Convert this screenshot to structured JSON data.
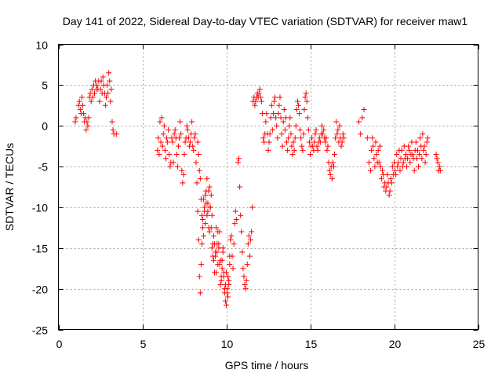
{
  "chart_data": {
    "type": "scatter",
    "title": "Day 141 of 2022, Sidereal Day-to-day VTEC variation (SDTVAR) for receiver maw1",
    "xlabel": "GPS time / hours",
    "ylabel": "SDTVAR / TECUs",
    "xlim": [
      0,
      25
    ],
    "ylim": [
      -25,
      10
    ],
    "xticks": [
      0,
      5,
      10,
      15,
      20,
      25
    ],
    "yticks": [
      -25,
      -20,
      -15,
      -10,
      -5,
      0,
      5,
      10
    ],
    "xtick_labels": [
      "0",
      "5",
      "10",
      "15",
      "20",
      "25"
    ],
    "ytick_labels": [
      "-25",
      "-20",
      "-15",
      "-10",
      "-5",
      "0",
      "5",
      "10"
    ],
    "grid": true,
    "marker": "+",
    "color": "#ff0000",
    "series": [
      {
        "name": "SDTVAR",
        "x": [
          1.0,
          1.05,
          1.2,
          1.25,
          1.3,
          1.35,
          1.4,
          1.45,
          1.5,
          1.55,
          1.6,
          1.65,
          1.7,
          1.75,
          1.8,
          1.85,
          1.9,
          1.95,
          2.0,
          2.05,
          2.1,
          2.15,
          2.2,
          2.25,
          2.3,
          2.35,
          2.4,
          2.45,
          2.5,
          2.55,
          2.6,
          2.65,
          2.7,
          2.75,
          2.8,
          2.85,
          2.9,
          2.95,
          3.0,
          3.05,
          3.1,
          3.15,
          3.2,
          3.25,
          3.3,
          3.45,
          5.9,
          5.95,
          6.0,
          6.05,
          6.1,
          6.15,
          6.2,
          6.25,
          6.3,
          6.35,
          6.4,
          6.45,
          6.5,
          6.55,
          6.6,
          6.65,
          6.7,
          6.75,
          6.8,
          6.85,
          6.9,
          6.95,
          7.0,
          7.05,
          7.1,
          7.15,
          7.2,
          7.25,
          7.3,
          7.35,
          7.4,
          7.45,
          7.5,
          7.55,
          7.6,
          7.65,
          7.7,
          7.75,
          7.8,
          7.85,
          7.9,
          7.95,
          8.0,
          8.05,
          8.1,
          8.15,
          8.2,
          8.25,
          8.3,
          8.35,
          8.4,
          8.45,
          8.5,
          8.55,
          8.6,
          8.65,
          8.7,
          8.75,
          8.8,
          8.85,
          8.9,
          8.95,
          9.0,
          9.05,
          9.1,
          9.15,
          9.2,
          9.25,
          9.3,
          9.35,
          9.4,
          9.45,
          9.5,
          9.55,
          9.6,
          9.65,
          9.7,
          9.75,
          9.8,
          9.85,
          9.9,
          9.95,
          10.0,
          10.05,
          10.1,
          10.15,
          10.2,
          10.25,
          10.3,
          10.35,
          10.4,
          10.45,
          10.5,
          10.55,
          10.6,
          8.3,
          8.35,
          8.4,
          8.45,
          8.5,
          8.55,
          8.6,
          8.65,
          8.7,
          8.75,
          8.8,
          8.85,
          8.9,
          8.95,
          9.0,
          9.05,
          9.1,
          9.15,
          9.2,
          9.25,
          9.3,
          9.35,
          9.4,
          9.45,
          9.5,
          9.55,
          9.6,
          9.65,
          9.7,
          9.75,
          9.8,
          9.85,
          9.9,
          9.95,
          10.0,
          10.05,
          10.1,
          10.15,
          10.2,
          10.7,
          10.75,
          10.8,
          10.85,
          10.9,
          10.95,
          11.0,
          11.05,
          11.1,
          11.15,
          11.2,
          11.25,
          11.3,
          11.35,
          11.4,
          11.45,
          11.5,
          11.55,
          11.6,
          11.65,
          11.7,
          11.75,
          11.8,
          11.85,
          11.9,
          11.95,
          12.0,
          12.05,
          12.1,
          12.15,
          12.2,
          12.25,
          12.3,
          12.35,
          12.4,
          12.45,
          12.5,
          12.55,
          12.6,
          12.65,
          12.7,
          12.75,
          12.8,
          12.85,
          12.9,
          12.95,
          13.0,
          13.05,
          13.1,
          13.15,
          13.2,
          13.25,
          13.3,
          13.35,
          13.4,
          13.45,
          13.5,
          13.55,
          13.6,
          13.65,
          13.7,
          13.75,
          13.8,
          13.85,
          13.9,
          13.95,
          14.0,
          14.05,
          14.1,
          14.15,
          14.2,
          14.25,
          14.3,
          14.35,
          14.4,
          14.45,
          14.5,
          14.55,
          14.6,
          14.65,
          14.7,
          14.75,
          14.8,
          14.85,
          14.9,
          14.95,
          15.0,
          15.05,
          15.1,
          15.15,
          15.2,
          15.25,
          15.3,
          15.35,
          15.4,
          15.45,
          15.5,
          15.55,
          15.6,
          15.65,
          15.7,
          15.75,
          15.8,
          15.85,
          15.9,
          15.95,
          16.0,
          16.05,
          16.1,
          16.15,
          16.2,
          16.25,
          16.3,
          16.35,
          16.4,
          16.45,
          16.5,
          16.55,
          16.6,
          16.65,
          16.7,
          16.75,
          16.8,
          16.85,
          16.9,
          16.95,
          17.0,
          17.9,
          18.0,
          18.1,
          18.2,
          18.4,
          18.5,
          18.6,
          18.65,
          18.7,
          18.75,
          18.8,
          18.85,
          18.9,
          18.95,
          19.0,
          19.05,
          19.1,
          19.15,
          19.2,
          19.25,
          19.3,
          19.35,
          19.4,
          19.45,
          19.5,
          19.55,
          19.6,
          19.65,
          19.7,
          19.75,
          19.8,
          19.85,
          19.9,
          19.95,
          20.0,
          20.05,
          20.1,
          20.15,
          20.2,
          20.25,
          20.3,
          20.35,
          20.4,
          20.45,
          20.5,
          20.55,
          20.6,
          20.65,
          20.7,
          20.75,
          20.8,
          20.85,
          20.9,
          20.95,
          21.0,
          21.05,
          21.1,
          21.15,
          21.2,
          21.25,
          21.3,
          21.35,
          21.4,
          21.45,
          21.5,
          21.55,
          21.6,
          21.65,
          21.7,
          21.75,
          21.8,
          21.85,
          21.9,
          21.95,
          22.0,
          22.5,
          22.55,
          22.6,
          22.65,
          22.7,
          22.75
        ],
        "y": [
          0.5,
          1.0,
          2.5,
          3.0,
          2.0,
          1.5,
          3.5,
          2.5,
          1.5,
          0.5,
          1.0,
          -0.5,
          0.5,
          0.0,
          1.0,
          3.5,
          4.0,
          3.0,
          4.5,
          3.5,
          5.0,
          4.0,
          5.5,
          4.5,
          5.0,
          4.5,
          5.5,
          3.0,
          4.5,
          5.5,
          4.0,
          6.0,
          5.0,
          4.0,
          2.5,
          3.5,
          5.0,
          4.0,
          6.5,
          5.5,
          3.0,
          4.5,
          0.5,
          -0.5,
          -1.0,
          -1.0,
          -3.0,
          -1.5,
          -3.5,
          0.5,
          -2.0,
          1.0,
          -2.5,
          -1.0,
          0.0,
          -3.0,
          -4.0,
          -1.5,
          -2.0,
          -0.5,
          -3.5,
          -5.0,
          -4.5,
          -1.5,
          -2.0,
          -4.5,
          -1.0,
          -0.5,
          -1.5,
          -3.5,
          -5.0,
          -2.5,
          -1.5,
          0.5,
          -1.0,
          -5.5,
          -7.0,
          -6.0,
          -3.5,
          -2.0,
          -1.5,
          0.0,
          -0.5,
          -1.5,
          -2.5,
          -2.0,
          -1.0,
          0.5,
          -2.5,
          -3.0,
          -1.5,
          -1.0,
          -4.5,
          -7.0,
          -10.5,
          -14.0,
          -18.5,
          -20.5,
          -17.0,
          -14.5,
          -11.5,
          -9.0,
          -10.5,
          -12.0,
          -8.0,
          -6.5,
          -9.5,
          -12.5,
          -13.0,
          -10.0,
          -8.5,
          -11.0,
          -14.5,
          -16.5,
          -18.0,
          -15.5,
          -12.5,
          -14.5,
          -17.0,
          -15.0,
          -13.0,
          -16.5,
          -19.0,
          -17.5,
          -15.5,
          -18.5,
          -20.5,
          -21.5,
          -22.0,
          -20.0,
          -18.5,
          -19.5,
          -17.0,
          -14.0,
          -13.5,
          -16.0,
          -17.5,
          -14.5,
          -12.0,
          -10.5,
          -11.5,
          -2.0,
          -3.5,
          -5.5,
          -6.5,
          -9.0,
          -11.0,
          -12.5,
          -13.5,
          -10.0,
          -8.5,
          -9.5,
          -11.0,
          -10.5,
          -8.0,
          -7.5,
          -10.0,
          -12.5,
          -15.0,
          -16.0,
          -13.5,
          -14.5,
          -16.0,
          -18.0,
          -15.5,
          -13.0,
          -14.5,
          -17.0,
          -19.5,
          -18.5,
          -16.5,
          -15.0,
          -18.0,
          -20.0,
          -19.5,
          -18.0,
          -20.5,
          -21.0,
          -19.0,
          -16.0,
          -4.5,
          -4.0,
          -7.5,
          -11.0,
          -13.0,
          -15.5,
          -17.5,
          -18.5,
          -19.5,
          -20.0,
          -19.0,
          -17.0,
          -14.5,
          -13.5,
          -16.0,
          -14.0,
          -13.0,
          -10.0,
          3.0,
          3.5,
          2.5,
          3.0,
          3.5,
          4.0,
          3.5,
          4.0,
          4.5,
          3.5,
          3.0,
          1.5,
          -1.5,
          -2.0,
          -1.0,
          0.5,
          1.5,
          -1.0,
          -3.0,
          -2.0,
          -1.0,
          1.0,
          2.5,
          -0.5,
          1.5,
          3.0,
          3.5,
          1.0,
          0.0,
          -1.5,
          1.5,
          2.5,
          3.5,
          1.0,
          -1.0,
          -2.5,
          0.5,
          2.0,
          -0.5,
          1.0,
          -2.0,
          -3.0,
          -1.5,
          0.0,
          1.0,
          -1.0,
          -2.5,
          -3.5,
          -2.0,
          -3.0,
          -1.5,
          0.0,
          2.0,
          3.0,
          2.5,
          1.5,
          -0.5,
          -1.5,
          -2.5,
          -3.0,
          -1.0,
          2.0,
          3.5,
          4.0,
          3.0,
          1.0,
          -0.5,
          -2.0,
          -3.5,
          -2.5,
          -1.5,
          -2.5,
          -3.0,
          -2.0,
          -1.0,
          -0.5,
          -2.5,
          -3.0,
          -2.0,
          -1.5,
          -2.0,
          -1.0,
          0.0,
          -1.0,
          -0.5,
          -1.5,
          -2.0,
          -1.5,
          -3.0,
          -2.5,
          -4.5,
          -5.5,
          -6.0,
          -5.0,
          -6.5,
          -4.5,
          -5.0,
          -3.5,
          -1.5,
          0.5,
          -1.0,
          -0.5,
          -2.0,
          0.0,
          -1.5,
          -2.5,
          -2.0,
          -1.0,
          -1.5,
          0.5,
          -1.0,
          1.0,
          2.0,
          -1.5,
          -4.5,
          -5.5,
          -3.0,
          -1.5,
          -2.5,
          -4.0,
          -5.0,
          -2.0,
          -3.5,
          -4.5,
          -3.0,
          -4.5,
          -2.5,
          -5.0,
          -6.5,
          -5.5,
          -6.0,
          -7.5,
          -7.0,
          -8.0,
          -7.5,
          -6.0,
          -7.0,
          -8.5,
          -8.0,
          -6.5,
          -7.0,
          -5.0,
          -6.0,
          -4.5,
          -5.5,
          -6.0,
          -3.5,
          -5.0,
          -4.5,
          -3.0,
          -5.5,
          -4.0,
          -3.0,
          -5.0,
          -4.5,
          -2.5,
          -4.0,
          -3.5,
          -5.0,
          -4.0,
          -2.5,
          -3.0,
          -4.5,
          -3.5,
          -2.0,
          -3.5,
          -4.0,
          -5.5,
          -3.0,
          -2.0,
          -4.0,
          -3.0,
          -5.0,
          -3.5,
          -1.5,
          -2.5,
          -4.0,
          -1.0,
          -3.0,
          -2.5,
          -4.5,
          -3.5,
          -2.0,
          -1.5,
          -3.5,
          -4.0,
          -4.5,
          -5.5,
          -5.0,
          -5.5
        ]
      }
    ]
  }
}
